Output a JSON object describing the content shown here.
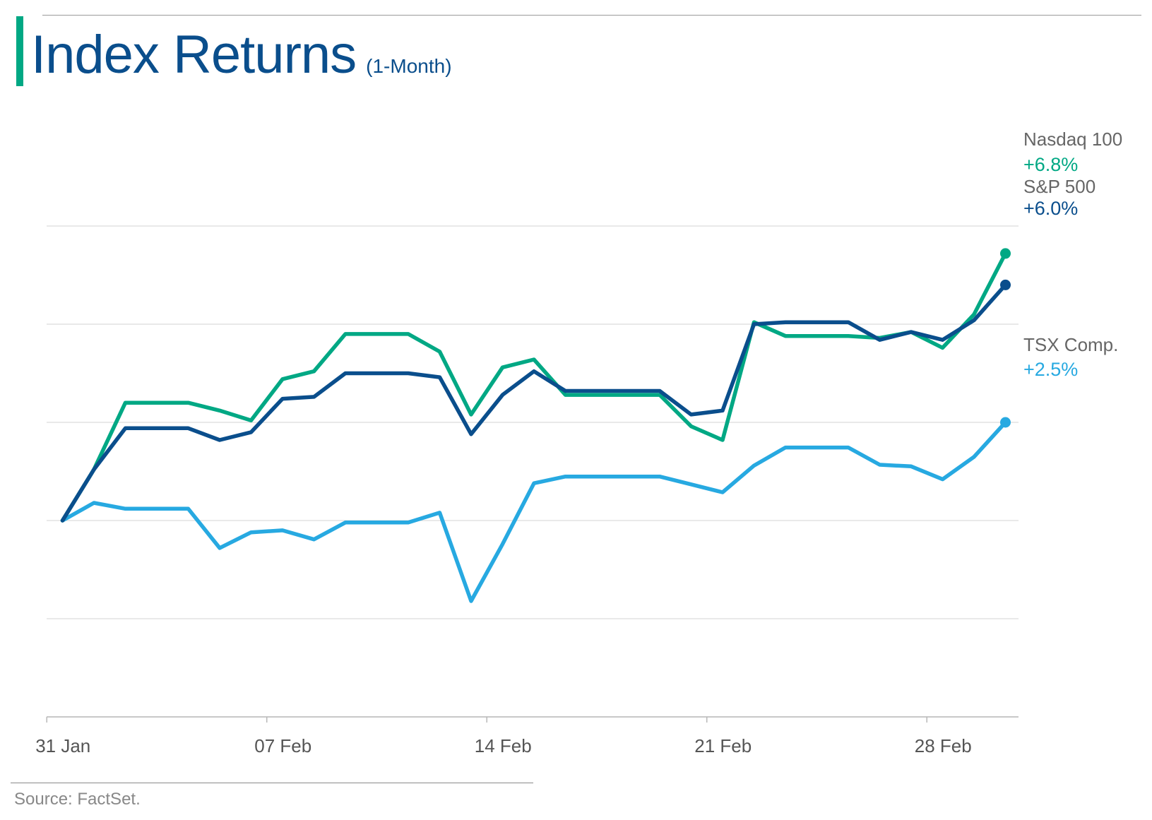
{
  "header": {
    "title": "Index Returns",
    "subtitle": "(1-Month)"
  },
  "source": "Source: FactSet.",
  "colors": {
    "nasdaq": "#00a884",
    "sp500": "#0a4e8c",
    "tsx": "#27a9e1",
    "grid": "#dcdcdc",
    "axis": "#b8b8b8",
    "tick_text": "#555555",
    "label_text": "#666666"
  },
  "chart_data": {
    "type": "line",
    "xlabel": "",
    "ylabel": "",
    "ylim": [
      -5,
      10
    ],
    "yticks": [
      -5,
      -2.5,
      0,
      2.5,
      5,
      7.5
    ],
    "y_tick_labels_shown": false,
    "grid": true,
    "legend": "end-of-line labels (right)",
    "x": [
      "31 Jan",
      "03 Feb",
      "04 Feb",
      "05 Feb",
      "06 Feb",
      "07 Feb",
      "10 Feb",
      "11 Feb",
      "12 Feb",
      "13 Feb",
      "14 Feb",
      "18 Feb",
      "19 Feb",
      "20 Feb",
      "21 Feb",
      "24 Feb",
      "25 Feb",
      "26 Feb",
      "27 Feb",
      "28 Feb",
      "03 Mar",
      "04 Mar",
      "05 Mar",
      "06 Mar",
      "07 Mar",
      "10 Mar",
      "11 Mar",
      "12 Mar",
      "13 Mar",
      "14 Mar",
      "17 Mar"
    ],
    "x_index": [
      0,
      1,
      2,
      3,
      4,
      5,
      6,
      7,
      8,
      9,
      10,
      11,
      12,
      13,
      14,
      15,
      16,
      17,
      18,
      19,
      20,
      21,
      22,
      23,
      24,
      25,
      26,
      27,
      28,
      29,
      30
    ],
    "xticks": [
      {
        "label": "31 Jan",
        "index": -0.5
      },
      {
        "label": "07 Feb",
        "index": 6.5
      },
      {
        "label": "14 Feb",
        "index": 13.5
      },
      {
        "label": "21 Feb",
        "index": 20.5
      },
      {
        "label": "28 Feb",
        "index": 27.5
      }
    ],
    "series": [
      {
        "key": "nasdaq",
        "name": "Nasdaq 100",
        "end_label": "+6.8%",
        "values": [
          0.0,
          1.3,
          3.0,
          3.0,
          3.0,
          2.8,
          2.55,
          3.6,
          3.8,
          4.75,
          4.75,
          4.75,
          4.3,
          2.7,
          3.9,
          4.1,
          3.2,
          3.2,
          3.2,
          3.2,
          2.4,
          2.05,
          5.05,
          4.7,
          4.7,
          4.7,
          4.65,
          4.8,
          4.4,
          5.25,
          6.8
        ]
      },
      {
        "key": "sp500",
        "name": "S&P 500",
        "end_label": "+6.0%",
        "values": [
          0.0,
          1.3,
          2.35,
          2.35,
          2.35,
          2.05,
          2.25,
          3.1,
          3.15,
          3.75,
          3.75,
          3.75,
          3.65,
          2.2,
          3.2,
          3.8,
          3.3,
          3.3,
          3.3,
          3.3,
          2.7,
          2.8,
          5.0,
          5.05,
          5.05,
          5.05,
          4.6,
          4.8,
          4.6,
          5.1,
          6.0
        ]
      },
      {
        "key": "tsx",
        "name": "TSX Comp.",
        "end_label": "+2.5%",
        "values": [
          0.0,
          0.45,
          0.3,
          0.3,
          0.3,
          -0.7,
          -0.3,
          -0.25,
          -0.48,
          -0.05,
          -0.05,
          -0.05,
          0.2,
          -2.05,
          -0.6,
          0.95,
          1.12,
          1.12,
          1.12,
          1.12,
          0.92,
          0.72,
          1.4,
          1.86,
          1.86,
          1.86,
          1.42,
          1.38,
          1.05,
          1.62,
          2.5
        ]
      }
    ]
  }
}
